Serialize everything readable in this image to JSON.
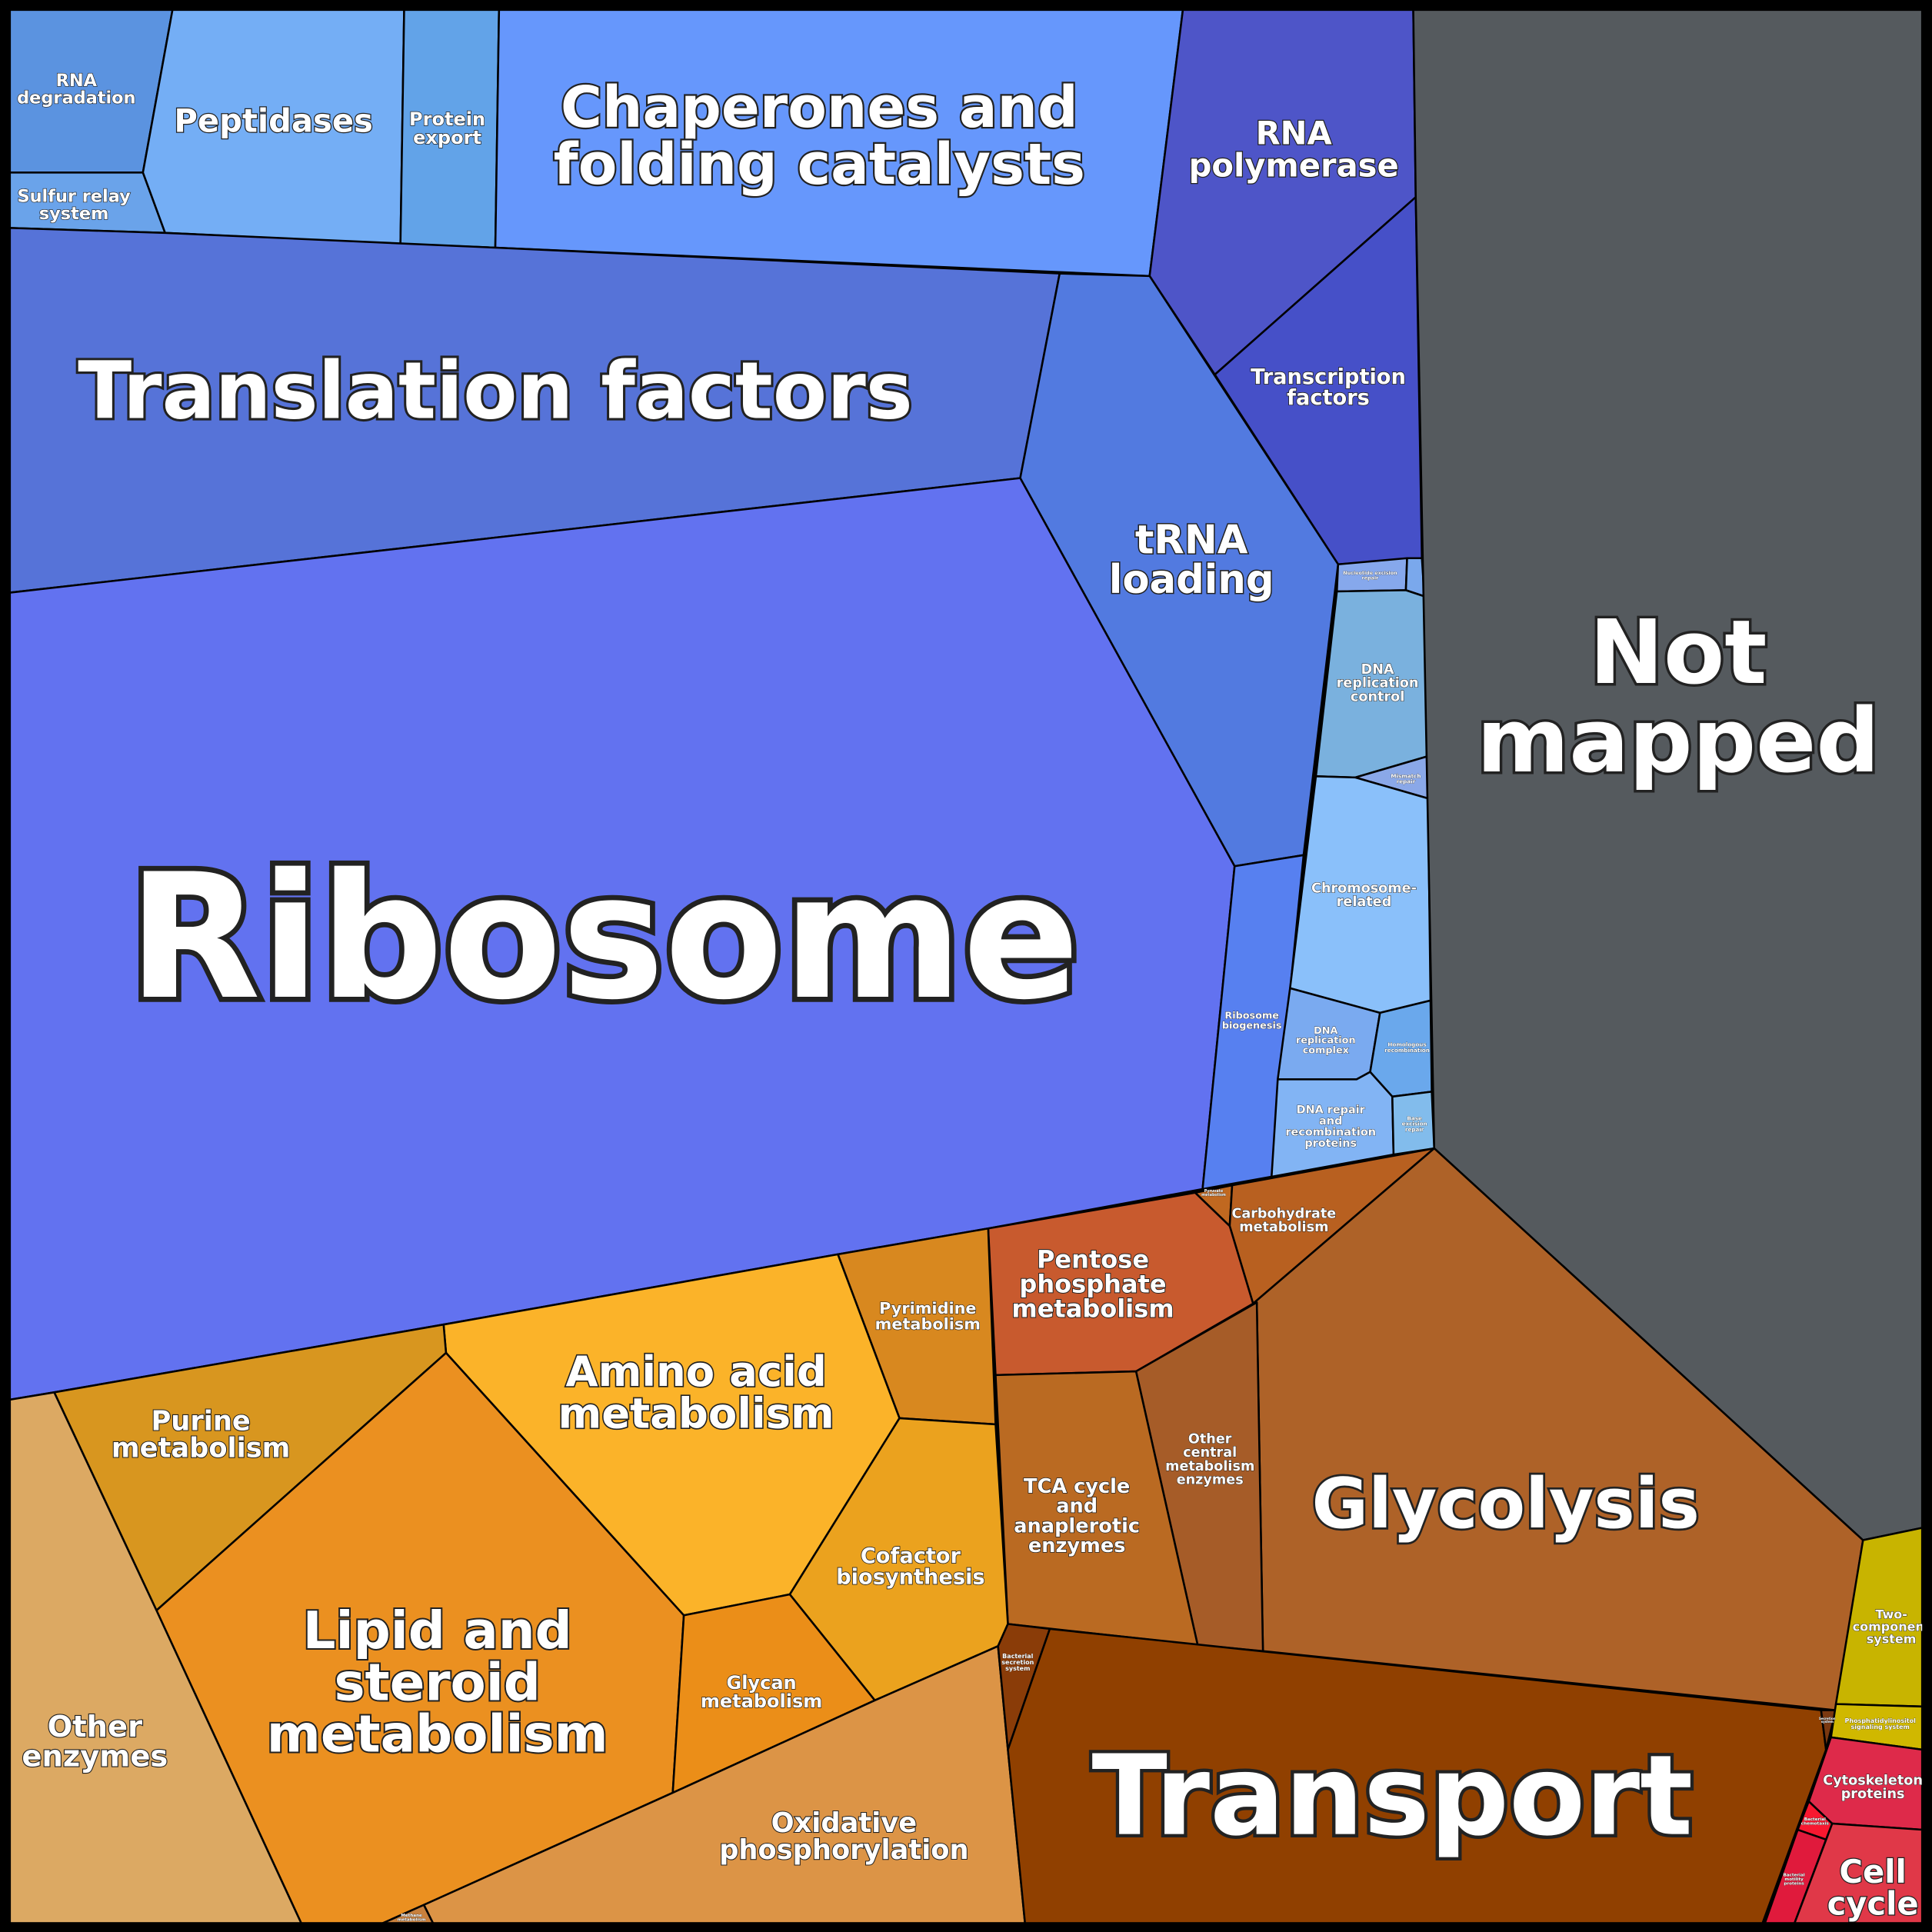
{
  "cells": [
    {
      "id": "rna_deg",
      "lines": [
        "RNA",
        "degradation"
      ],
      "color": "#5b93e0"
    },
    {
      "id": "sulfur",
      "lines": [
        "Sulfur relay",
        "system"
      ],
      "color": "#6aa3ea"
    },
    {
      "id": "peptidases",
      "lines": [
        "Peptidases"
      ],
      "color": "#74aef5"
    },
    {
      "id": "protein_export",
      "lines": [
        "Protein",
        "export"
      ],
      "color": "#62a3e8"
    },
    {
      "id": "chaperones",
      "lines": [
        "Chaperones and",
        "folding catalysts"
      ],
      "color": "#6697fc"
    },
    {
      "id": "rna_pol",
      "lines": [
        "RNA",
        "polymerase"
      ],
      "color": "#4e55c8"
    },
    {
      "id": "tf",
      "lines": [
        "Transcription",
        "factors"
      ],
      "color": "#4650c8"
    },
    {
      "id": "translation",
      "lines": [
        "Translation factors"
      ],
      "color": "#5673d8"
    },
    {
      "id": "trna",
      "lines": [
        "tRNA",
        "loading"
      ],
      "color": "#527ae0"
    },
    {
      "id": "ribosome",
      "lines": [
        "Ribosome"
      ],
      "color": "#6272f0"
    },
    {
      "id": "ribo_biogenesis",
      "lines": [
        "Ribosome",
        "biogenesis"
      ],
      "color": "#5780f0"
    },
    {
      "id": "ner",
      "lines": [
        "Nucleotide excision",
        "repair"
      ],
      "color": "#86a8ec"
    },
    {
      "id": "tiny_dna",
      "lines": [],
      "color": "#7aa8ec"
    },
    {
      "id": "dna_rep_control",
      "lines": [
        "DNA",
        "replication",
        "control"
      ],
      "color": "#7ab1de"
    },
    {
      "id": "mismatch",
      "lines": [
        "Mismatch",
        "repair"
      ],
      "color": "#8aa8e8"
    },
    {
      "id": "chromosome",
      "lines": [
        "Chromosome-",
        "related"
      ],
      "color": "#8ac0fa"
    },
    {
      "id": "dna_rep_complex",
      "lines": [
        "DNA",
        "replication",
        "complex"
      ],
      "color": "#7aaaf0"
    },
    {
      "id": "homologous",
      "lines": [
        "Homologous",
        "recombination"
      ],
      "color": "#6aa8ec"
    },
    {
      "id": "dna_repair",
      "lines": [
        "DNA repair",
        "and",
        "recombination",
        "proteins"
      ],
      "color": "#82b4f4"
    },
    {
      "id": "base_excision",
      "lines": [
        "Base",
        "excision",
        "repair"
      ],
      "color": "#82bcec"
    },
    {
      "id": "not_mapped",
      "lines": [
        "Not",
        "mapped"
      ],
      "color": "#555a5e"
    },
    {
      "id": "pyruvate",
      "lines": [
        "Pyruvate",
        "metabolism"
      ],
      "color": "#c06820"
    },
    {
      "id": "carb",
      "lines": [
        "Carbohydrate",
        "metabolism"
      ],
      "color": "#b86020"
    },
    {
      "id": "pentose",
      "lines": [
        "Pentose",
        "phosphate",
        "metabolism"
      ],
      "color": "#c85a2e"
    },
    {
      "id": "glycolysis",
      "lines": [
        "Glycolysis"
      ],
      "color": "#ae6228"
    },
    {
      "id": "other_central",
      "lines": [
        "Other",
        "central",
        "metabolism",
        "enzymes"
      ],
      "color": "#a65c28"
    },
    {
      "id": "tca",
      "lines": [
        "TCA cycle",
        "and",
        "anaplerotic",
        "enzymes"
      ],
      "color": "#ba6a22"
    },
    {
      "id": "pyrimidine",
      "lines": [
        "Pyrimidine",
        "metabolism"
      ],
      "color": "#d8881f"
    },
    {
      "id": "amino",
      "lines": [
        "Amino acid",
        "metabolism"
      ],
      "color": "#fbb329"
    },
    {
      "id": "cofactor",
      "lines": [
        "Cofactor",
        "biosynthesis"
      ],
      "color": "#eba21e"
    },
    {
      "id": "purine",
      "lines": [
        "Purine",
        "metabolism"
      ],
      "color": "#d8961f"
    },
    {
      "id": "lipid",
      "lines": [
        "Lipid and",
        "steroid",
        "metabolism"
      ],
      "color": "#eb9020"
    },
    {
      "id": "glycan",
      "lines": [
        "Glycan",
        "metabolism"
      ],
      "color": "#eb8e18"
    },
    {
      "id": "other_enzymes",
      "lines": [
        "Other",
        "enzymes"
      ],
      "color": "#dca963"
    },
    {
      "id": "oxphos",
      "lines": [
        "Oxidative",
        "phosphorylation"
      ],
      "color": "#dc9446"
    },
    {
      "id": "methane",
      "lines": [
        "Methane",
        "metabolism"
      ],
      "color": "#c8803c"
    },
    {
      "id": "bact_secretion",
      "lines": [
        "Bacterial",
        "secretion",
        "system"
      ],
      "color": "#8a3c08"
    },
    {
      "id": "transport",
      "lines": [
        "Transport"
      ],
      "color": "#904000"
    },
    {
      "id": "secretion",
      "lines": [
        "Secretion",
        "system"
      ],
      "color": "#7a3810"
    },
    {
      "id": "two_comp",
      "lines": [
        "Two-",
        "component",
        "system"
      ],
      "color": "#c8b400"
    },
    {
      "id": "pi",
      "lines": [
        "Phosphatidylinositol",
        "signaling system"
      ],
      "color": "#d0b800"
    },
    {
      "id": "cytoskeleton",
      "lines": [
        "Cytoskeleton",
        "proteins"
      ],
      "color": "#de2a4a"
    },
    {
      "id": "chemotaxis",
      "lines": [
        "Bacterial",
        "chemotaxis"
      ],
      "color": "#f81830"
    },
    {
      "id": "motility",
      "lines": [
        "Bacterial",
        "motility",
        "proteins"
      ],
      "color": "#e01a3c"
    },
    {
      "id": "cell_cycle",
      "lines": [
        "Cell",
        "cycle"
      ],
      "color": "#e03848"
    }
  ]
}
